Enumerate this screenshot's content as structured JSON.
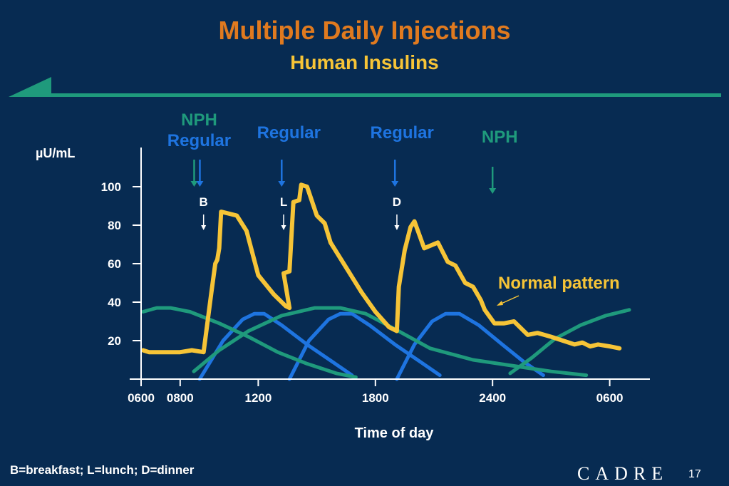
{
  "slide": {
    "title": "Multiple Daily Injections",
    "subtitle": "Human Insulins",
    "footnote": "B=breakfast; L=lunch; D=dinner",
    "logo": "CADRE",
    "page_number": "17"
  },
  "colors": {
    "background": "#072b52",
    "title": "#e07a1f",
    "subtitle": "#f6c437",
    "normal": "#f6c437",
    "regular": "#1e74e0",
    "nph": "#1f9a7c",
    "axis": "#ffffff"
  },
  "chart_data": {
    "type": "line",
    "ylabel": "µU/mL",
    "xlabel": "Time of day",
    "x_ticks": [
      "0600",
      "0800",
      "1200",
      "1800",
      "2400",
      "0600"
    ],
    "x_tick_hours": [
      0,
      2,
      6,
      12,
      18,
      24
    ],
    "y_ticks": [
      20,
      40,
      60,
      80,
      100
    ],
    "xlim": [
      0,
      26
    ],
    "ylim": [
      0,
      120
    ],
    "injections": [
      {
        "label_lines": [
          "NPH",
          "Regular"
        ],
        "type": "NPH+Regular",
        "hour": 2.9
      },
      {
        "label_lines": [
          "Regular"
        ],
        "type": "Regular",
        "hour": 7.2
      },
      {
        "label_lines": [
          "Regular"
        ],
        "type": "Regular",
        "hour": 13.0
      },
      {
        "label_lines": [
          "NPH"
        ],
        "type": "NPH",
        "hour": 18.0
      }
    ],
    "meals": [
      {
        "label": "B",
        "hour": 3.2
      },
      {
        "label": "L",
        "hour": 7.3
      },
      {
        "label": "D",
        "hour": 13.1
      }
    ],
    "annotation": "Normal pattern",
    "series": [
      {
        "name": "Normal pattern",
        "role": "normal",
        "points": [
          [
            0.1,
            15
          ],
          [
            0.4,
            14
          ],
          [
            2.0,
            14
          ],
          [
            2.6,
            15
          ],
          [
            3.2,
            14
          ],
          [
            3.6,
            45
          ],
          [
            3.8,
            60
          ],
          [
            3.9,
            62
          ],
          [
            4.0,
            68
          ],
          [
            4.1,
            87
          ],
          [
            4.9,
            85
          ],
          [
            5.4,
            77
          ],
          [
            6.0,
            54
          ],
          [
            6.8,
            44
          ],
          [
            7.4,
            38
          ],
          [
            7.6,
            37
          ],
          [
            7.3,
            55
          ],
          [
            7.6,
            56
          ],
          [
            7.8,
            92
          ],
          [
            8.1,
            93
          ],
          [
            8.2,
            101
          ],
          [
            8.5,
            100
          ],
          [
            9.0,
            85
          ],
          [
            9.4,
            81
          ],
          [
            9.7,
            71
          ],
          [
            10.5,
            58
          ],
          [
            11.3,
            45
          ],
          [
            12.0,
            35
          ],
          [
            12.7,
            27
          ],
          [
            13.1,
            25
          ],
          [
            13.2,
            48
          ],
          [
            13.5,
            67
          ],
          [
            13.8,
            79
          ],
          [
            14.0,
            82
          ],
          [
            14.5,
            68
          ],
          [
            15.2,
            71
          ],
          [
            15.7,
            61
          ],
          [
            16.1,
            59
          ],
          [
            16.6,
            50
          ],
          [
            17.0,
            48
          ],
          [
            17.4,
            41
          ],
          [
            17.6,
            36
          ],
          [
            18.1,
            29
          ],
          [
            18.6,
            29
          ],
          [
            19.1,
            30
          ],
          [
            19.8,
            23
          ],
          [
            20.3,
            24
          ],
          [
            21.0,
            22
          ],
          [
            21.6,
            20
          ],
          [
            22.2,
            18
          ],
          [
            22.6,
            19
          ],
          [
            23.0,
            17
          ],
          [
            23.4,
            18
          ],
          [
            24.0,
            17
          ],
          [
            24.5,
            16
          ]
        ]
      },
      {
        "name": "Regular (breakfast)",
        "role": "regular",
        "points": [
          [
            3.0,
            0
          ],
          [
            4.2,
            20
          ],
          [
            5.2,
            31
          ],
          [
            5.8,
            34
          ],
          [
            6.3,
            34
          ],
          [
            7.2,
            28
          ],
          [
            8.5,
            18
          ],
          [
            9.8,
            9
          ],
          [
            10.8,
            2
          ]
        ]
      },
      {
        "name": "Regular (lunch)",
        "role": "regular",
        "points": [
          [
            7.6,
            0
          ],
          [
            8.6,
            20
          ],
          [
            9.6,
            31
          ],
          [
            10.2,
            34
          ],
          [
            10.8,
            34
          ],
          [
            11.7,
            28
          ],
          [
            13.0,
            18
          ],
          [
            14.3,
            9
          ],
          [
            15.3,
            2
          ]
        ]
      },
      {
        "name": "Regular (dinner)",
        "role": "regular",
        "points": [
          [
            13.1,
            0
          ],
          [
            14.0,
            18
          ],
          [
            14.9,
            30
          ],
          [
            15.6,
            34
          ],
          [
            16.3,
            34
          ],
          [
            17.3,
            28
          ],
          [
            18.5,
            18
          ],
          [
            19.6,
            9
          ],
          [
            20.6,
            2
          ]
        ]
      },
      {
        "name": "NPH (morning)",
        "role": "nph",
        "points": [
          [
            2.7,
            4
          ],
          [
            4.0,
            15
          ],
          [
            5.5,
            25
          ],
          [
            7.2,
            33
          ],
          [
            8.9,
            37
          ],
          [
            10.2,
            37
          ],
          [
            11.5,
            34
          ],
          [
            13.0,
            26
          ],
          [
            14.8,
            16
          ],
          [
            17.0,
            10
          ],
          [
            19.0,
            7
          ],
          [
            21.0,
            4
          ],
          [
            22.8,
            2
          ]
        ]
      },
      {
        "name": "NPH (evening)",
        "role": "nph",
        "points": [
          [
            18.9,
            3
          ],
          [
            20.0,
            11
          ],
          [
            21.2,
            21
          ],
          [
            22.5,
            28
          ],
          [
            23.8,
            33
          ],
          [
            25.0,
            36
          ]
        ]
      },
      {
        "name": "NPH (previous evening)",
        "role": "nph",
        "points": [
          [
            0.1,
            35
          ],
          [
            0.8,
            37
          ],
          [
            1.5,
            37
          ],
          [
            2.5,
            35
          ],
          [
            4.0,
            29
          ],
          [
            5.5,
            22
          ],
          [
            7.0,
            14
          ],
          [
            8.5,
            8
          ],
          [
            10.0,
            3
          ],
          [
            11.0,
            1
          ]
        ]
      }
    ]
  }
}
